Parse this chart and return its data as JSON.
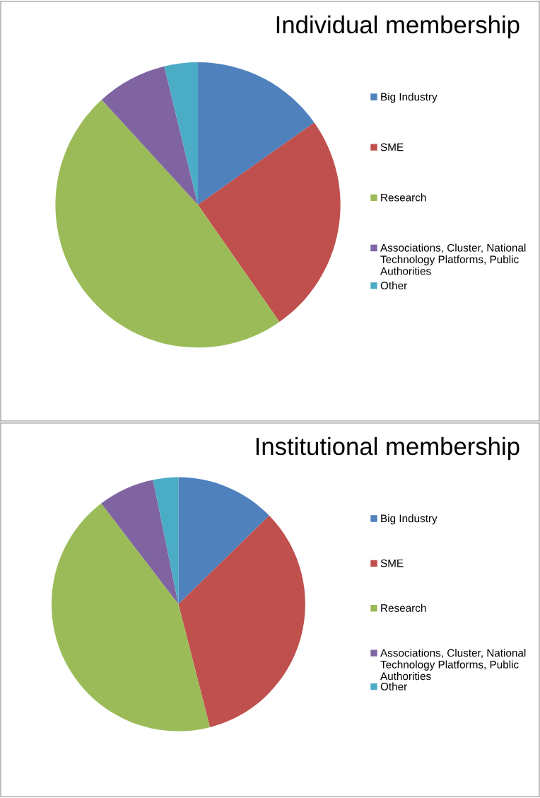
{
  "chart_data": [
    {
      "type": "pie",
      "title": "Individual membership",
      "categories": [
        "Big Industry",
        "SME",
        "Research",
        "Associations, Cluster, National Technology Platforms, Public Authorities",
        "Other"
      ],
      "values": [
        15.2,
        25.1,
        47.9,
        8.0,
        3.8
      ],
      "colors": [
        "#4f81bd",
        "#c0504d",
        "#9bbb59",
        "#8064a2",
        "#4bacc6"
      ],
      "legend": "right"
    },
    {
      "type": "pie",
      "title": "Institutional membership",
      "categories": [
        "Big Industry",
        "SME",
        "Research",
        "Associations, Cluster, National Technology Platforms, Public Authorities",
        "Other"
      ],
      "values": [
        12.7,
        33.3,
        43.6,
        7.2,
        3.2
      ],
      "colors": [
        "#4f81bd",
        "#c0504d",
        "#9bbb59",
        "#8064a2",
        "#4bacc6"
      ],
      "legend": "right"
    }
  ]
}
